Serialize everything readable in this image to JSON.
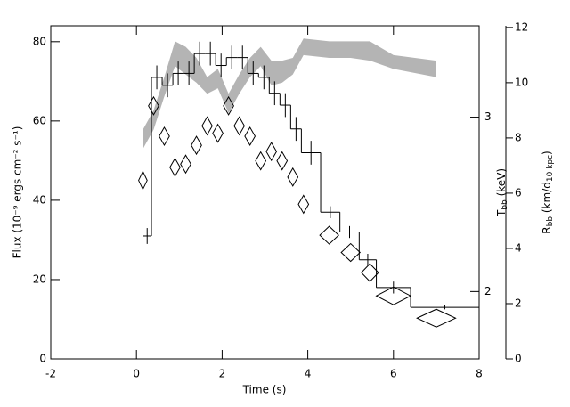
{
  "chart_data": {
    "type": "step",
    "x_label": "Time (s)",
    "y_label": "Flux (10⁻⁹ ergs cm⁻² s⁻¹)",
    "y2_label": {
      "main": "T",
      "sub": "bb",
      "rest": " (keV)"
    },
    "y3_label": {
      "main": "R",
      "sub": "bb",
      "mid": " (km/d",
      "sub2": "10 kpc",
      "rest": ")"
    },
    "xlim": [
      -2,
      8
    ],
    "xticks": [
      -2,
      0,
      2,
      4,
      6,
      8
    ],
    "ylim": [
      0,
      84
    ],
    "yticks": [
      0,
      20,
      40,
      60,
      80
    ],
    "y2lim": [
      1.71,
      3.71
    ],
    "y2log": true,
    "y2ticks": [
      2,
      3
    ],
    "y3lim": [
      0,
      12.06
    ],
    "y3ticks": [
      0,
      2,
      4,
      6,
      8,
      10,
      12
    ],
    "series": [
      {
        "type": "band",
        "axis": "y3",
        "color": "#b4b4b4",
        "x": [
          0.15,
          0.4,
          0.65,
          0.9,
          1.15,
          1.4,
          1.65,
          1.9,
          2.15,
          2.4,
          2.65,
          2.9,
          3.15,
          3.4,
          3.65,
          3.9,
          4.5,
          5.0,
          5.45,
          6.0,
          7.0
        ],
        "lower": [
          7.6,
          8.3,
          9.5,
          10.6,
          10.3,
          10.0,
          9.6,
          9.8,
          8.9,
          9.6,
          10.2,
          10.6,
          9.9,
          10.0,
          10.3,
          11.0,
          10.9,
          10.9,
          10.8,
          10.5,
          10.2
        ],
        "upper": [
          8.3,
          9.0,
          10.2,
          11.5,
          11.3,
          10.9,
          10.2,
          10.5,
          9.6,
          10.3,
          10.9,
          11.3,
          10.8,
          10.8,
          10.9,
          11.6,
          11.5,
          11.5,
          11.5,
          11.0,
          10.8
        ]
      },
      {
        "type": "step",
        "axis": "y",
        "color": "#000000",
        "bins": [
          0.15,
          0.35,
          0.6,
          0.85,
          1.1,
          1.35,
          1.6,
          1.85,
          2.1,
          2.35,
          2.6,
          2.85,
          3.1,
          3.35,
          3.6,
          3.85,
          4.3,
          4.75,
          5.2,
          5.6,
          6.4,
          8
        ],
        "values": [
          31,
          71,
          69,
          72,
          72,
          77,
          77,
          74,
          76,
          76,
          72,
          71,
          67,
          64,
          58,
          52,
          37,
          32,
          25,
          18,
          13
        ],
        "errors": [
          2,
          3,
          3,
          3,
          3,
          3,
          3,
          3,
          3,
          3,
          3,
          3,
          3,
          3,
          3,
          3,
          1.5,
          1.5,
          1.5,
          1.5,
          0.5
        ]
      },
      {
        "type": "diamond",
        "axis": "y2",
        "color": "#000000",
        "x": [
          0.15,
          0.4,
          0.65,
          0.9,
          1.15,
          1.4,
          1.65,
          1.9,
          2.15,
          2.4,
          2.65,
          2.9,
          3.15,
          3.4,
          3.65,
          3.9,
          4.5,
          5.0,
          5.45,
          6.0,
          7.0
        ],
        "xerr": [
          0.1,
          0.12,
          0.12,
          0.12,
          0.12,
          0.12,
          0.12,
          0.12,
          0.12,
          0.12,
          0.12,
          0.12,
          0.12,
          0.12,
          0.12,
          0.12,
          0.22,
          0.22,
          0.2,
          0.4,
          0.45
        ],
        "values": [
          2.59,
          3.08,
          2.87,
          2.67,
          2.69,
          2.81,
          2.94,
          2.89,
          3.08,
          2.94,
          2.87,
          2.71,
          2.77,
          2.71,
          2.61,
          2.45,
          2.28,
          2.19,
          2.09,
          1.98,
          1.88
        ]
      }
    ]
  }
}
